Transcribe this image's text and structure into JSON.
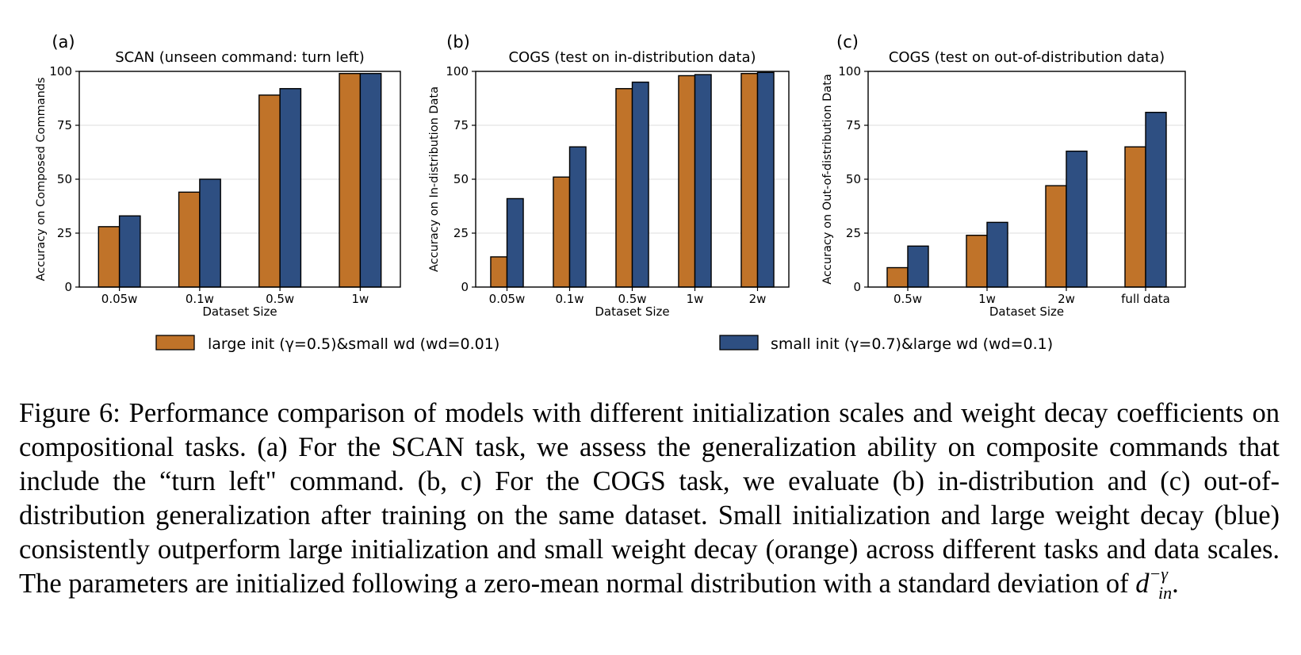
{
  "chart_data": [
    {
      "type": "bar",
      "panel": "(a)",
      "title": "SCAN (unseen command: turn left)",
      "xlabel": "Dataset Size",
      "ylabel": "Accuracy on Composed Commands",
      "categories": [
        "0.05w",
        "0.1w",
        "0.5w",
        "1w"
      ],
      "ylim": [
        0,
        100
      ],
      "yticks": [
        0,
        25,
        50,
        75,
        100
      ],
      "series": [
        {
          "name": "large init (γ=0.5)&small wd (wd=0.01)",
          "values": [
            28,
            44,
            89,
            99
          ]
        },
        {
          "name": "small init (γ=0.7)&large wd (wd=0.1)",
          "values": [
            33,
            50,
            92,
            99
          ]
        }
      ]
    },
    {
      "type": "bar",
      "panel": "(b)",
      "title": "COGS (test on in-distribution data)",
      "xlabel": "Dataset Size",
      "ylabel": "Accuracy on In-distribution Data",
      "categories": [
        "0.05w",
        "0.1w",
        "0.5w",
        "1w",
        "2w"
      ],
      "ylim": [
        0,
        100
      ],
      "yticks": [
        0,
        25,
        50,
        75,
        100
      ],
      "series": [
        {
          "name": "large init (γ=0.5)&small wd (wd=0.01)",
          "values": [
            14,
            51,
            92,
            98,
            99
          ]
        },
        {
          "name": "small init (γ=0.7)&large wd (wd=0.1)",
          "values": [
            41,
            65,
            95,
            98.5,
            99.5
          ]
        }
      ]
    },
    {
      "type": "bar",
      "panel": "(c)",
      "title": "COGS (test on out-of-distribution data)",
      "xlabel": "Dataset Size",
      "ylabel": "Accuracy on Out-of-distribution Data",
      "categories": [
        "0.5w",
        "1w",
        "2w",
        "full data"
      ],
      "ylim": [
        0,
        100
      ],
      "yticks": [
        0,
        25,
        50,
        75,
        100
      ],
      "series": [
        {
          "name": "large init (γ=0.5)&small wd (wd=0.01)",
          "values": [
            9,
            24,
            47,
            65
          ]
        },
        {
          "name": "small init (γ=0.7)&large wd (wd=0.1)",
          "values": [
            19,
            30,
            63,
            81
          ]
        }
      ]
    }
  ],
  "legend": [
    {
      "label": "large init (γ=0.5)&small wd (wd=0.01)",
      "color": "#c07329"
    },
    {
      "label": "small init (γ=0.7)&large wd (wd=0.1)",
      "color": "#2e4f82"
    }
  ],
  "colors": {
    "orange": "#c07329",
    "blue": "#2e4f82",
    "grid": "#e3e3e3"
  },
  "caption": {
    "text": "Figure 6: Performance comparison of models with different initialization scales and weight decay coefficients on compositional tasks. (a) For the SCAN task, we assess the generalization ability on composite commands that include the “turn left\" command. (b, c) For the COGS task, we evaluate (b) in-distribution and (c) out-of-distribution generalization after training on the same dataset. Small initialization and large weight decay (blue) consistently outperform large initialization and small weight decay (orange) across different tasks and data scales. The parameters are initialized following a zero-mean normal distribution with a standard deviation of",
    "math_base": "d",
    "math_sub": "in",
    "math_sup": "−γ",
    "end": "."
  }
}
